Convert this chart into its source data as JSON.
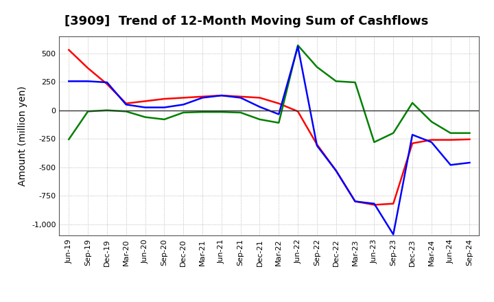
{
  "title": "[3909]  Trend of 12-Month Moving Sum of Cashflows",
  "ylabel": "Amount (million yen)",
  "x_labels": [
    "Jun-19",
    "Sep-19",
    "Dec-19",
    "Mar-20",
    "Jun-20",
    "Sep-20",
    "Dec-20",
    "Mar-21",
    "Jun-21",
    "Sep-21",
    "Dec-21",
    "Mar-22",
    "Jun-22",
    "Sep-22",
    "Dec-22",
    "Mar-23",
    "Jun-23",
    "Sep-23",
    "Dec-23",
    "Mar-24",
    "Jun-24",
    "Sep-24"
  ],
  "operating_cashflow": [
    530,
    370,
    230,
    60,
    80,
    100,
    110,
    120,
    130,
    120,
    110,
    60,
    -10,
    -300,
    -530,
    -800,
    -830,
    -820,
    -290,
    -260,
    -260,
    -255
  ],
  "investing_cashflow": [
    -255,
    -10,
    0,
    -10,
    -60,
    -80,
    -20,
    -15,
    -15,
    -20,
    -80,
    -110,
    570,
    380,
    255,
    245,
    -280,
    -200,
    65,
    -100,
    -200,
    -200
  ],
  "free_cashflow": [
    255,
    255,
    245,
    50,
    25,
    25,
    50,
    110,
    130,
    110,
    30,
    -35,
    560,
    -310,
    -530,
    -800,
    -820,
    -1090,
    -215,
    -280,
    -480,
    -460
  ],
  "operating_color": "#ff0000",
  "investing_color": "#008000",
  "free_color": "#0000ff",
  "background_color": "#ffffff",
  "plot_background": "#ffffff",
  "grid_color": "#aaaaaa",
  "ylim": [
    -1100,
    650
  ],
  "yticks": [
    -1000,
    -750,
    -500,
    -250,
    0,
    250,
    500
  ],
  "line_width": 1.8,
  "title_fontsize": 13,
  "axis_fontsize": 10,
  "tick_fontsize": 8,
  "legend_fontsize": 10
}
